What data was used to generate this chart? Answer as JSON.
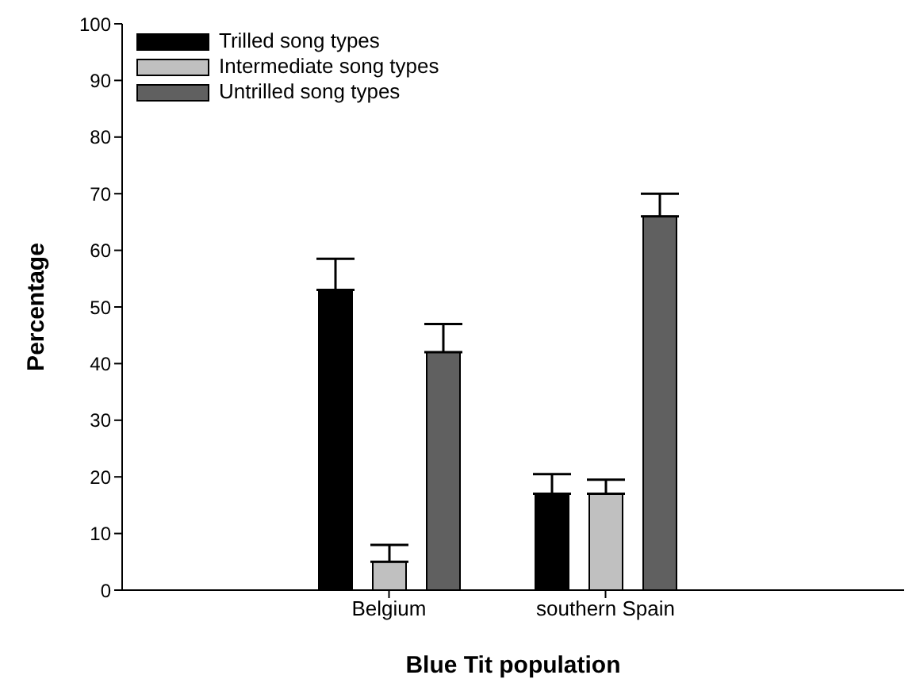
{
  "chart_data": {
    "type": "bar",
    "xlabel": "Blue Tit population",
    "ylabel": "Percentage",
    "categories": [
      "Belgium",
      "southern Spain"
    ],
    "series": [
      {
        "name": "Trilled song types",
        "color": "#000000",
        "values": [
          53,
          17
        ],
        "errors": [
          [
            53,
            58.5
          ],
          [
            17,
            20.5
          ]
        ]
      },
      {
        "name": "Intermediate song types",
        "color": "#c0c0c0",
        "values": [
          5,
          17
        ],
        "errors": [
          [
            5,
            8
          ],
          [
            17,
            19.5
          ]
        ]
      },
      {
        "name": "Untrilled song types",
        "color": "#606060",
        "values": [
          42,
          66
        ],
        "errors": [
          [
            42,
            47
          ],
          [
            66,
            70
          ]
        ]
      }
    ],
    "ylim": [
      0,
      100
    ],
    "yticks": [
      0,
      10,
      20,
      30,
      40,
      50,
      60,
      70,
      80,
      90,
      100
    ],
    "grid": false,
    "legend": "top left"
  }
}
